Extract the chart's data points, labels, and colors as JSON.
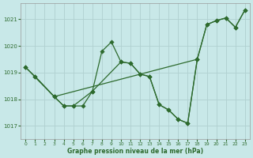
{
  "title": "Graphe pression niveau de la mer (hPa)",
  "bg_color": "#c8e8e8",
  "grid_color": "#b0d0d0",
  "line_color": "#2d6a2d",
  "xlim": [
    -0.5,
    23.5
  ],
  "ylim": [
    1016.5,
    1021.6
  ],
  "yticks": [
    1017,
    1018,
    1019,
    1020,
    1021
  ],
  "xticks": [
    0,
    1,
    2,
    3,
    4,
    5,
    6,
    7,
    8,
    9,
    10,
    11,
    12,
    13,
    14,
    15,
    16,
    17,
    18,
    19,
    20,
    21,
    22,
    23
  ],
  "lines": [
    {
      "x": [
        0,
        3,
        18,
        19,
        20,
        21,
        22,
        23
      ],
      "y": [
        1019.2,
        1018.1,
        1019.5,
        1020.8,
        1020.95,
        1021.05,
        1020.7,
        1021.35
      ]
    },
    {
      "x": [
        0,
        1,
        3,
        4,
        5,
        7,
        8,
        9,
        10,
        11,
        12,
        13,
        14,
        15,
        16,
        17,
        18,
        19,
        20,
        21,
        22,
        23
      ],
      "y": [
        1019.2,
        1018.85,
        1018.1,
        1017.75,
        1017.75,
        1018.3,
        1019.8,
        1020.15,
        1019.4,
        1019.35,
        1018.95,
        1018.85,
        1017.8,
        1017.6,
        1017.25,
        1017.1,
        1019.5,
        1020.8,
        1020.95,
        1021.05,
        1020.7,
        1021.35
      ]
    },
    {
      "x": [
        1,
        3,
        4,
        5,
        6,
        7,
        10,
        11,
        12,
        13,
        14,
        15,
        16,
        17,
        18
      ],
      "y": [
        1018.85,
        1018.1,
        1017.75,
        1017.75,
        1017.75,
        1018.3,
        1019.4,
        1019.35,
        1018.95,
        1018.85,
        1017.8,
        1017.6,
        1017.25,
        1017.1,
        1019.5
      ]
    }
  ]
}
